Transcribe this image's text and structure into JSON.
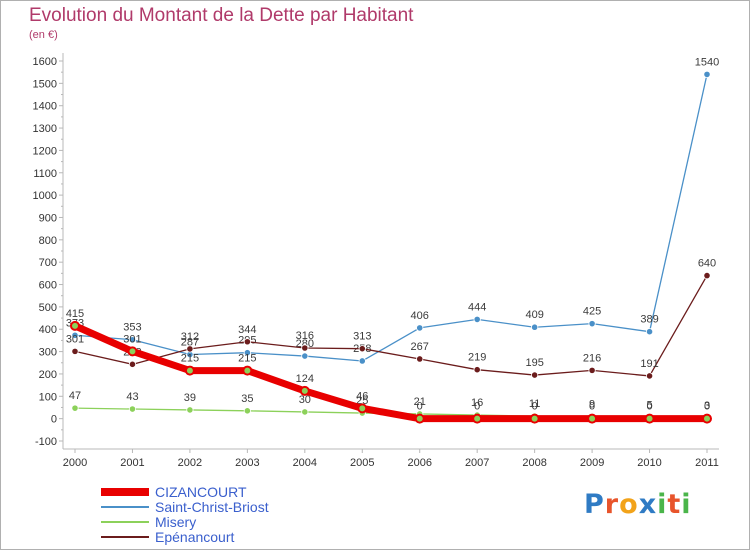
{
  "title": "Evolution du Montant de la Dette par Habitant",
  "subtitle": "(en €)",
  "logo": {
    "text": "Proxiti",
    "letters": [
      "P",
      "r",
      "o",
      "x",
      "i",
      "t",
      "i"
    ],
    "colors": [
      "#2f7bc4",
      "#e8542b",
      "#f2a31a",
      "#2f7bc4",
      "#4ab54a",
      "#e8542b",
      "#4ab54a"
    ]
  },
  "chart_data": {
    "type": "line",
    "x": [
      "2000",
      "2001",
      "2002",
      "2003",
      "2004",
      "2005",
      "2006",
      "2007",
      "2008",
      "2009",
      "2010",
      "2011"
    ],
    "ylim": [
      -100,
      1600
    ],
    "yticks": [
      -100,
      0,
      100,
      200,
      300,
      400,
      500,
      600,
      700,
      800,
      900,
      1000,
      1100,
      1200,
      1300,
      1400,
      1500,
      1600
    ],
    "grid": false,
    "series": [
      {
        "name": "Misery",
        "color": "#8cd15a",
        "values": [
          47,
          43,
          39,
          35,
          30,
          25,
          21,
          16,
          11,
          9,
          5,
          3
        ]
      },
      {
        "name": "Saint-Christ-Briost",
        "color": "#4a90c8",
        "values": [
          373,
          353,
          287,
          295,
          280,
          258,
          406,
          444,
          409,
          425,
          389,
          1540
        ]
      },
      {
        "name": "Epénancourt",
        "color": "#6b1c1c",
        "values": [
          301,
          243,
          312,
          344,
          316,
          313,
          267,
          219,
          195,
          216,
          191,
          640
        ]
      },
      {
        "name": "CIZANCOURT",
        "color": "#e80000",
        "values": [
          415,
          301,
          215,
          215,
          124,
          46,
          0,
          0,
          0,
          0,
          0,
          0
        ]
      }
    ],
    "legend_order": [
      "CIZANCOURT",
      "Saint-Christ-Briost",
      "Misery",
      "Epénancourt"
    ]
  }
}
